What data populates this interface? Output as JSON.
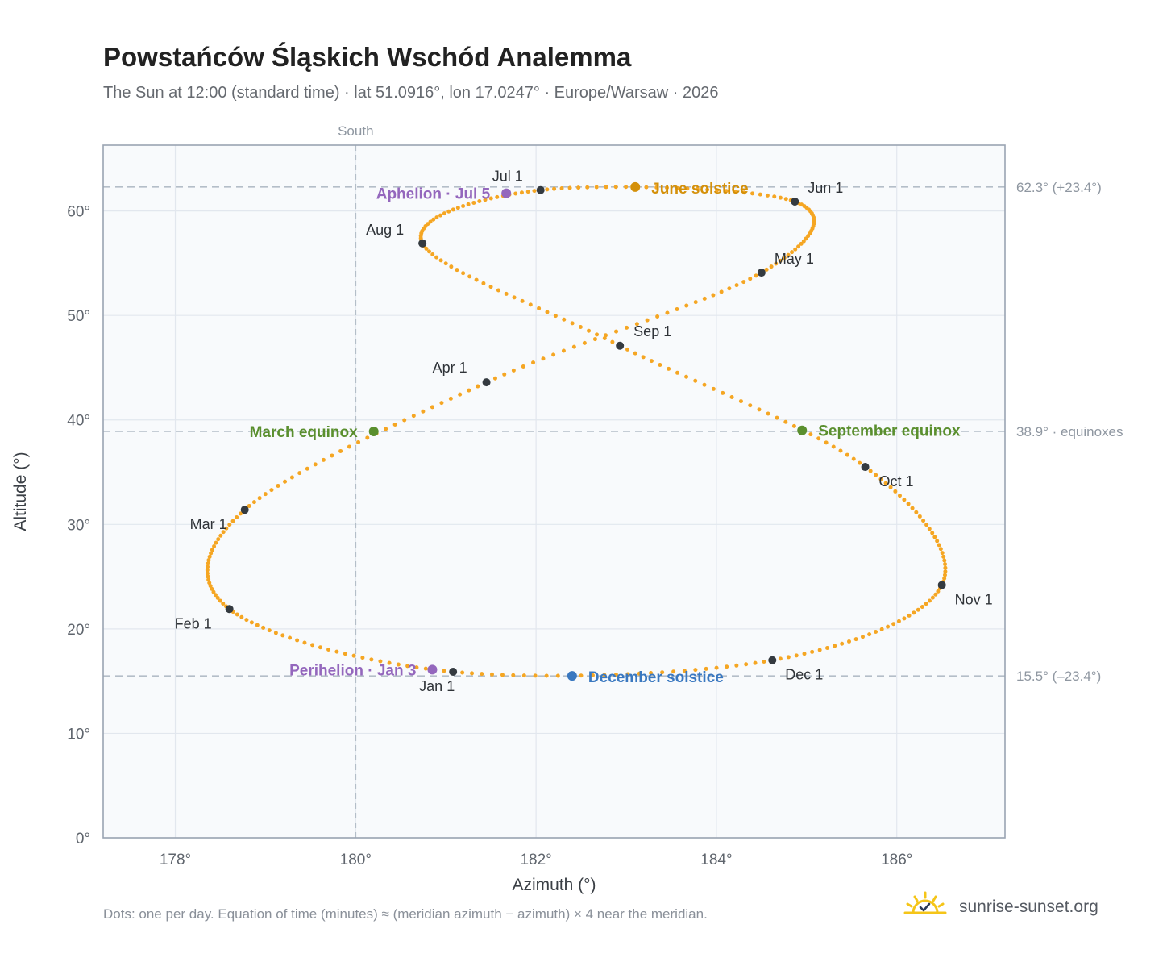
{
  "header": {
    "title": "Powstańców Śląskich Wschód Analemma",
    "subtitle": "The Sun at 12:00 (standard time) · lat 51.0916°, lon 17.0247° · Europe/Warsaw · 2026"
  },
  "footer": {
    "note": "Dots: one per day. Equation of time (minutes) ≈ (meridian azimuth − azimuth) × 4 near the meridian.",
    "brand": "sunrise-sunset.org",
    "brand_icon": "sun-check-icon"
  },
  "colors": {
    "path": "#f5a623",
    "month": "#343a40",
    "equinox": "#5a8f2e",
    "june": "#d4900a",
    "december": "#3a78c0",
    "perihelion": "#9467bd",
    "plot_bg": "#f8fafc",
    "frame": "#9aa4b2"
  },
  "chart_data": {
    "type": "scatter",
    "xlabel": "Azimuth (°)",
    "ylabel": "Altitude (°)",
    "xlim": [
      177.2,
      187.2
    ],
    "ylim": [
      0,
      66.3
    ],
    "xticks": [
      178,
      180,
      182,
      184,
      186
    ],
    "xtick_labels": [
      "178°",
      "180°",
      "182°",
      "184°",
      "186°"
    ],
    "yticks": [
      0,
      10,
      20,
      30,
      40,
      50,
      60
    ],
    "ytick_labels": [
      "0°",
      "10°",
      "20°",
      "30°",
      "40°",
      "50°",
      "60°"
    ],
    "grid": true,
    "meridian": {
      "label": "South",
      "azimuth": 180
    },
    "reference_lines": [
      {
        "altitude": 62.3,
        "label": "62.3° (+23.4°)"
      },
      {
        "altitude": 38.9,
        "label": "38.9° · equinoxes"
      },
      {
        "altitude": 15.5,
        "label": "15.5° (–23.4°)"
      }
    ],
    "year": 2026,
    "daily_points": 365,
    "months": [
      {
        "label": "Jan 1",
        "az": 181.08,
        "alt": 15.9
      },
      {
        "label": "Feb 1",
        "az": 178.6,
        "alt": 21.9
      },
      {
        "label": "Mar 1",
        "az": 178.77,
        "alt": 31.4
      },
      {
        "label": "Apr 1",
        "az": 181.45,
        "alt": 43.6
      },
      {
        "label": "May 1",
        "az": 184.5,
        "alt": 54.1
      },
      {
        "label": "Jun 1",
        "az": 184.87,
        "alt": 60.9
      },
      {
        "label": "Jul 1",
        "az": 182.05,
        "alt": 62.0
      },
      {
        "label": "Aug 1",
        "az": 180.74,
        "alt": 56.9
      },
      {
        "label": "Sep 1",
        "az": 182.93,
        "alt": 47.1
      },
      {
        "label": "Oct 1",
        "az": 185.65,
        "alt": 35.5
      },
      {
        "label": "Nov 1",
        "az": 186.5,
        "alt": 24.2
      },
      {
        "label": "Dec 1",
        "az": 184.62,
        "alt": 17.0
      }
    ],
    "events": [
      {
        "label": "March equinox",
        "az": 180.2,
        "alt": 38.9,
        "color": "#5a8f2e"
      },
      {
        "label": "June solstice",
        "az": 183.1,
        "alt": 62.3,
        "color": "#d4900a"
      },
      {
        "label": "September equinox",
        "az": 184.95,
        "alt": 39.0,
        "color": "#5a8f2e"
      },
      {
        "label": "December solstice",
        "az": 182.4,
        "alt": 15.5,
        "color": "#3a78c0"
      },
      {
        "label": "Perihelion · Jan 3",
        "az": 180.85,
        "alt": 16.1,
        "color": "#9467bd"
      },
      {
        "label": "Aphelion · Jul 5",
        "az": 181.67,
        "alt": 61.7,
        "color": "#9467bd"
      }
    ]
  }
}
